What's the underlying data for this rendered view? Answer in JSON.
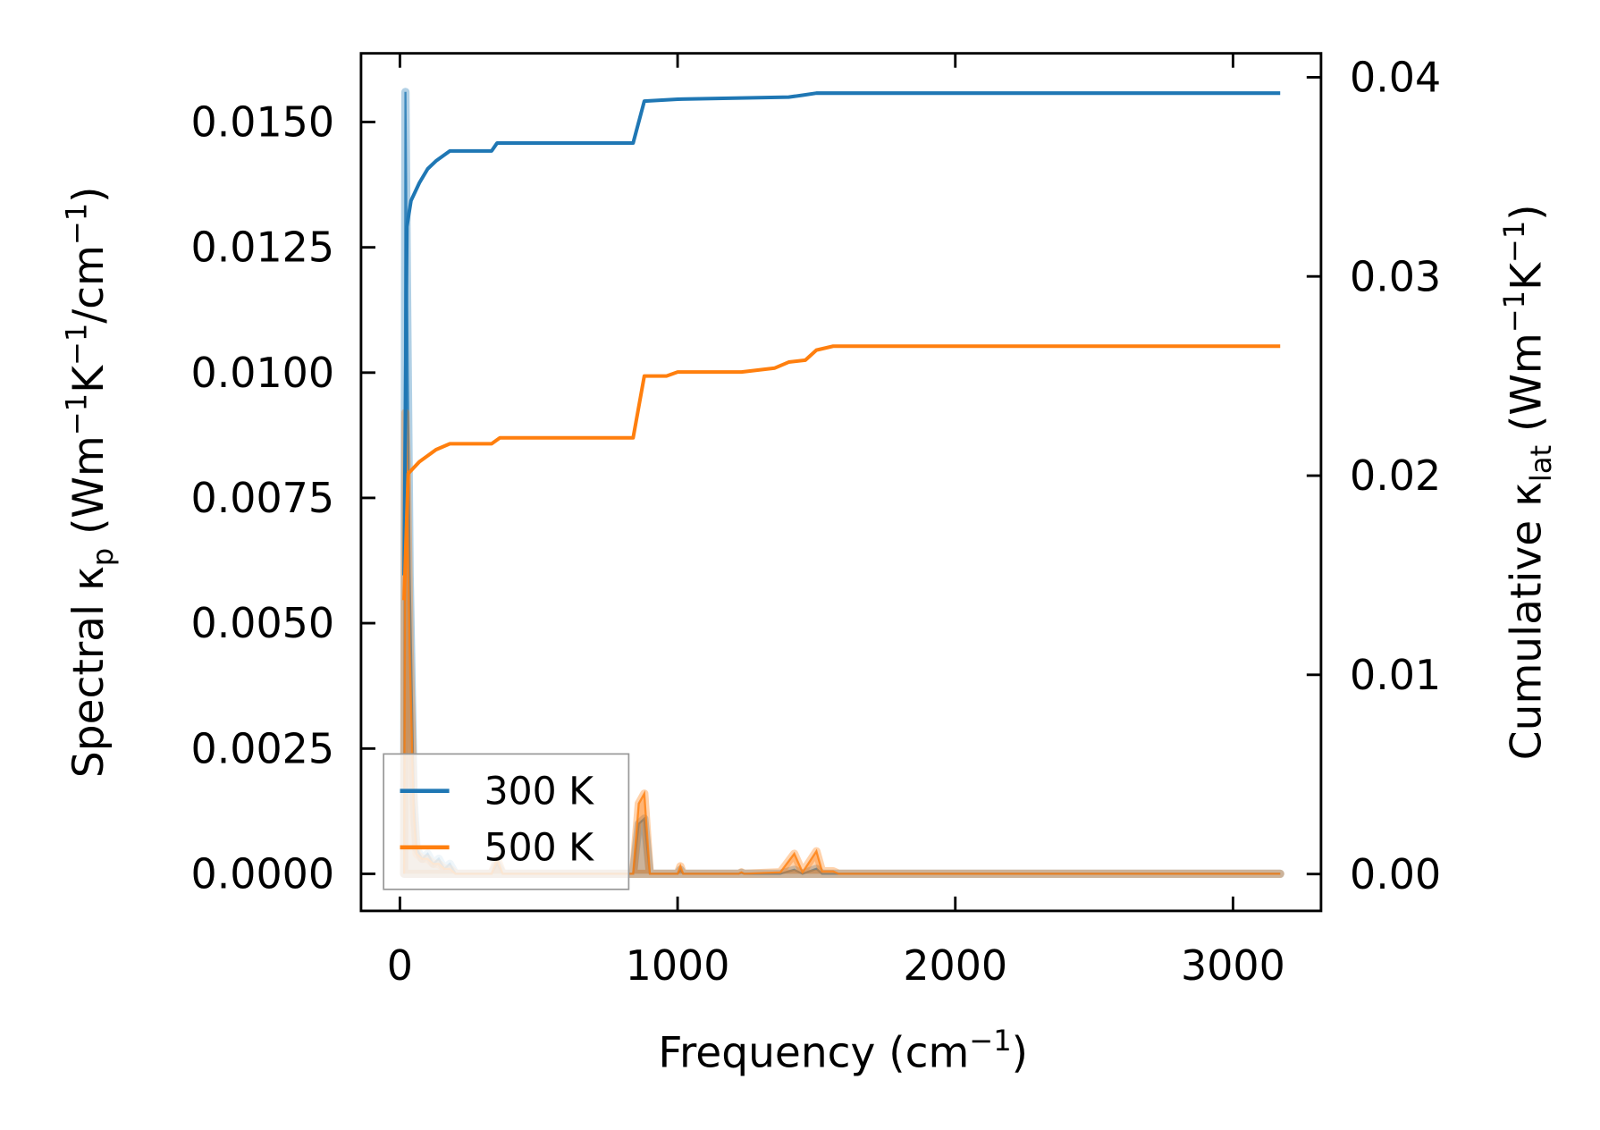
{
  "chart_data": {
    "type": "line",
    "xlabel": {
      "main": "Frequency (cm",
      "sup": "−1",
      "end": ")"
    },
    "ylabel_left": {
      "a": "Spectral κ",
      "sub": "p",
      "b": " (Wm",
      "s1": "−1",
      "c": "K",
      "s2": "−1",
      "d": "/cm",
      "s3": "−1",
      "e": ")"
    },
    "ylabel_right": {
      "a": "Cumulative κ",
      "sub": "lat",
      "b": " (Wm",
      "s1": "−1",
      "c": "K",
      "s2": "−1",
      "e": ")"
    },
    "xlim": [
      -140,
      3317
    ],
    "ylim_left": [
      -0.00074,
      0.01637
    ],
    "ylim_right": [
      -0.00185,
      0.0412
    ],
    "xticks": [
      "0",
      "1000",
      "2000",
      "3000"
    ],
    "xtick_values": [
      0,
      1000,
      2000,
      3000
    ],
    "yticks_left": [
      "0.0000",
      "0.0025",
      "0.0050",
      "0.0075",
      "0.0100",
      "0.0125",
      "0.0150"
    ],
    "ytick_left_values": [
      0,
      0.0025,
      0.005,
      0.0075,
      0.01,
      0.0125,
      0.015
    ],
    "yticks_right": [
      "0.00",
      "0.01",
      "0.02",
      "0.03",
      "0.04"
    ],
    "ytick_right_values": [
      0,
      0.01,
      0.02,
      0.03,
      0.04
    ],
    "legend_placement": "lower-left",
    "series": [
      {
        "name": "300 K",
        "color": "#1f77b4",
        "spectral": [
          [
            15,
            0
          ],
          [
            20,
            0.0156
          ],
          [
            25,
            0.012
          ],
          [
            35,
            0.006
          ],
          [
            50,
            0.0015
          ],
          [
            60,
            0.0005
          ],
          [
            80,
            0.0003
          ],
          [
            100,
            0.0004
          ],
          [
            120,
            0.0002
          ],
          [
            140,
            0.0003
          ],
          [
            160,
            0.0001
          ],
          [
            180,
            0.0002
          ],
          [
            200,
            0
          ],
          [
            330,
            0
          ],
          [
            350,
            0.0002
          ],
          [
            370,
            0
          ],
          [
            840,
            0
          ],
          [
            860,
            0.001
          ],
          [
            880,
            0.0011
          ],
          [
            900,
            0
          ],
          [
            1000,
            0
          ],
          [
            1010,
            8e-05
          ],
          [
            1020,
            0
          ],
          [
            1220,
            0
          ],
          [
            1230,
            2e-05
          ],
          [
            1240,
            0
          ],
          [
            1370,
            0
          ],
          [
            1420,
            8e-05
          ],
          [
            1450,
            0
          ],
          [
            1500,
            0.0001
          ],
          [
            1520,
            0
          ],
          [
            1580,
            0
          ],
          [
            3170,
            0
          ]
        ],
        "cumulative": [
          [
            15,
            0.015
          ],
          [
            25,
            0.0325
          ],
          [
            40,
            0.0338
          ],
          [
            70,
            0.0347
          ],
          [
            100,
            0.0354
          ],
          [
            130,
            0.0358
          ],
          [
            180,
            0.0363
          ],
          [
            330,
            0.0363
          ],
          [
            350,
            0.0367
          ],
          [
            840,
            0.0367
          ],
          [
            880,
            0.0388
          ],
          [
            1000,
            0.0389
          ],
          [
            1400,
            0.039
          ],
          [
            1450,
            0.0391
          ],
          [
            1500,
            0.0392
          ],
          [
            1600,
            0.0392
          ],
          [
            3170,
            0.0392
          ]
        ]
      },
      {
        "name": "500 K",
        "color": "#ff7f0e",
        "spectral": [
          [
            15,
            0
          ],
          [
            20,
            0.0092
          ],
          [
            25,
            0.008
          ],
          [
            35,
            0.0045
          ],
          [
            50,
            0.0012
          ],
          [
            60,
            0.0004
          ],
          [
            80,
            0.0003
          ],
          [
            100,
            0.0003
          ],
          [
            120,
            0.0002
          ],
          [
            140,
            0.0002
          ],
          [
            160,
            0.0001
          ],
          [
            180,
            0.0001
          ],
          [
            200,
            0
          ],
          [
            330,
            0
          ],
          [
            350,
            0.0003
          ],
          [
            370,
            0
          ],
          [
            840,
            0
          ],
          [
            860,
            0.0014
          ],
          [
            880,
            0.0016
          ],
          [
            900,
            0
          ],
          [
            1000,
            0
          ],
          [
            1010,
            0.00015
          ],
          [
            1020,
            0
          ],
          [
            1220,
            0
          ],
          [
            1230,
            3e-05
          ],
          [
            1240,
            0
          ],
          [
            1370,
            3e-05
          ],
          [
            1420,
            0.0004
          ],
          [
            1450,
            3e-05
          ],
          [
            1500,
            0.00045
          ],
          [
            1520,
            5e-05
          ],
          [
            1560,
            5e-05
          ],
          [
            1580,
            0
          ],
          [
            3170,
            0
          ]
        ],
        "cumulative": [
          [
            15,
            0.01375
          ],
          [
            30,
            0.0201
          ],
          [
            70,
            0.0207
          ],
          [
            100,
            0.021
          ],
          [
            130,
            0.0213
          ],
          [
            180,
            0.0216
          ],
          [
            330,
            0.0216
          ],
          [
            360,
            0.0219
          ],
          [
            840,
            0.0219
          ],
          [
            880,
            0.025
          ],
          [
            960,
            0.025
          ],
          [
            1000,
            0.0252
          ],
          [
            1230,
            0.0252
          ],
          [
            1350,
            0.0254
          ],
          [
            1400,
            0.0257
          ],
          [
            1460,
            0.0258
          ],
          [
            1500,
            0.0263
          ],
          [
            1560,
            0.0265
          ],
          [
            3170,
            0.0265
          ]
        ]
      }
    ]
  }
}
